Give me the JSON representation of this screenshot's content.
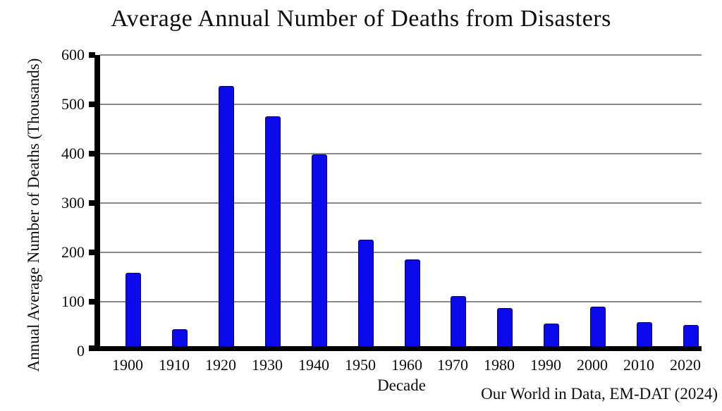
{
  "chart_data": {
    "type": "bar",
    "title": "Average Annual Number of Deaths from Disasters",
    "xlabel": "Decade",
    "ylabel": "Annual Average Number of Deaths (Thousands)",
    "source": "Our World in Data, EM-DAT (2024)",
    "categories": [
      "1900",
      "1910",
      "1920",
      "1930",
      "1940",
      "1950",
      "1960",
      "1970",
      "1980",
      "1990",
      "2000",
      "2010",
      "2020"
    ],
    "values": [
      148,
      34,
      527,
      465,
      389,
      215,
      176,
      101,
      77,
      46,
      80,
      48,
      43
    ],
    "ylim": [
      0,
      600
    ],
    "yticks": [
      0,
      100,
      200,
      300,
      400,
      500,
      600
    ],
    "grid": "horizontal lines at every 100, gray",
    "legend": "none",
    "colors": {
      "bar_fill": "#0a0aec",
      "bar_border": "#000066",
      "axis": "#000000",
      "gridline": "#8a8a8a",
      "background": "#ffffff",
      "text": "#0d0d0d"
    }
  }
}
